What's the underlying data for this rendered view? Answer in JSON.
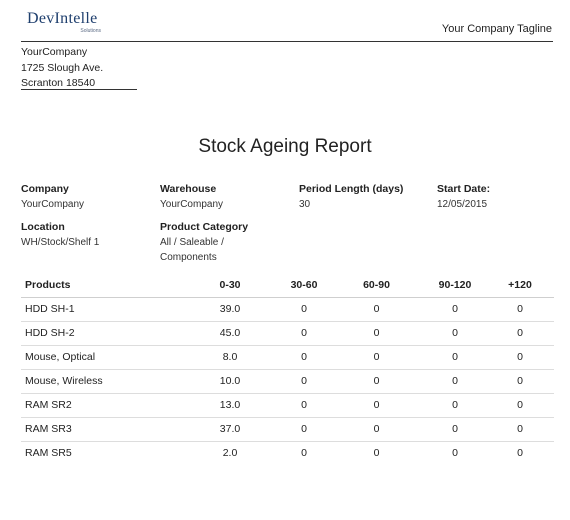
{
  "header": {
    "logo_main": "DevIntelle",
    "logo_sub": "Solutions",
    "tagline": "Your Company Tagline"
  },
  "address": {
    "line1": "YourCompany",
    "line2": "1725 Slough Ave.",
    "line3": "Scranton 18540"
  },
  "report": {
    "title": "Stock Ageing Report"
  },
  "info": {
    "company_label": "Company",
    "company_value": "YourCompany",
    "warehouse_label": "Warehouse",
    "warehouse_value": "YourCompany",
    "period_label": "Period Length (days)",
    "period_value": "30",
    "start_label": "Start Date:",
    "start_value": "12/05/2015",
    "location_label": "Location",
    "location_value": "WH/Stock/Shelf 1",
    "category_label": "Product Category",
    "category_value_1": "All / Saleable /",
    "category_value_2": "Components"
  },
  "table": {
    "headers": [
      "Products",
      "0-30",
      "30-60",
      "60-90",
      "90-120",
      "+120"
    ],
    "rows": [
      [
        "HDD SH-1",
        "39.0",
        "0",
        "0",
        "0",
        "0"
      ],
      [
        "HDD SH-2",
        "45.0",
        "0",
        "0",
        "0",
        "0"
      ],
      [
        "Mouse, Optical",
        "8.0",
        "0",
        "0",
        "0",
        "0"
      ],
      [
        "Mouse, Wireless",
        "10.0",
        "0",
        "0",
        "0",
        "0"
      ],
      [
        "RAM SR2",
        "13.0",
        "0",
        "0",
        "0",
        "0"
      ],
      [
        "RAM SR3",
        "37.0",
        "0",
        "0",
        "0",
        "0"
      ],
      [
        "RAM SR5",
        "2.0",
        "0",
        "0",
        "0",
        "0"
      ]
    ]
  }
}
